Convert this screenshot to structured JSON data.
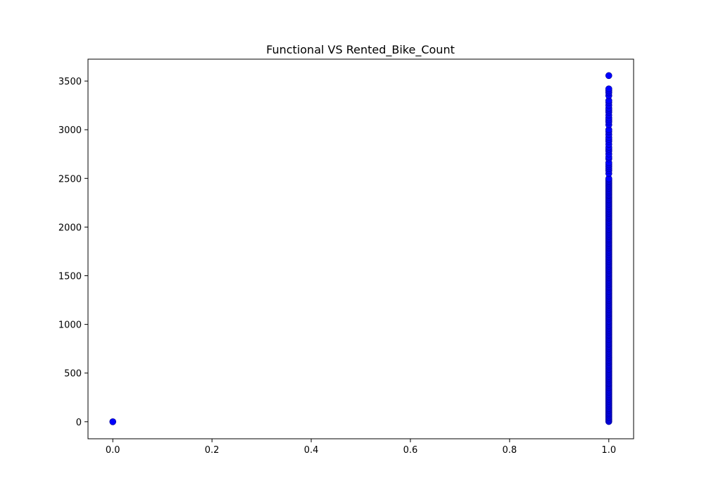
{
  "chart_data": {
    "type": "scatter",
    "title": "Functional VS Rented_Bike_Count",
    "xlabel": "",
    "ylabel": "",
    "xlim": [
      -0.05,
      1.05
    ],
    "ylim": [
      -175,
      3725
    ],
    "x_ticks": [
      0.0,
      0.2,
      0.4,
      0.6,
      0.8,
      1.0
    ],
    "x_tick_labels": [
      "0.0",
      "0.2",
      "0.4",
      "0.6",
      "0.8",
      "1.0"
    ],
    "y_ticks": [
      0,
      500,
      1000,
      1500,
      2000,
      2500,
      3000,
      3500
    ],
    "y_tick_labels": [
      "0",
      "500",
      "1000",
      "1500",
      "2000",
      "2500",
      "3000",
      "3500"
    ],
    "grid": false,
    "legend": "none",
    "marker_color": "#0000ff",
    "marker_edge_color": "#00008b",
    "series": [
      {
        "x_value": 0,
        "y": [
          0
        ],
        "continuous_range": null
      },
      {
        "x_value": 1,
        "y": [
          2550,
          2580,
          2600,
          2620,
          2640,
          2660,
          2700,
          2720,
          2750,
          2780,
          2800,
          2820,
          2850,
          2880,
          2900,
          2920,
          2950,
          2980,
          3000,
          3050,
          3080,
          3100,
          3120,
          3150,
          3180,
          3200,
          3220,
          3250,
          3280,
          3300,
          3350,
          3380,
          3400,
          3420,
          3556
        ],
        "continuous_range": [
          2,
          2500
        ]
      }
    ]
  }
}
